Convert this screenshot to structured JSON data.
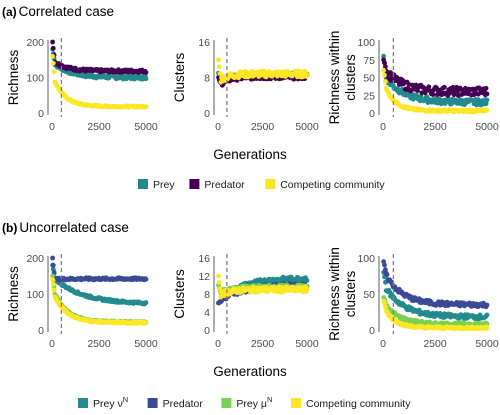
{
  "colors": {
    "prey": "#238A8D",
    "predator": "#440154",
    "competing": "#FDE725",
    "prey_nu": "#238A8D",
    "predator_b": "#3B4A96",
    "prey_mu": "#7AD151"
  },
  "shared_xlabel": "Generations",
  "chart_data": [
    {
      "type": "scatter",
      "panel_label": "(a)",
      "panel_title": "Correlated case",
      "ylabel": "Richness",
      "xlim": [
        0,
        5000
      ],
      "ylim": [
        0,
        200
      ],
      "xticks": [
        "0",
        "2500",
        "5000"
      ],
      "yticks": [
        "0",
        "100",
        "200"
      ],
      "vline_x": 500,
      "series": [
        {
          "name": "Prey",
          "color": "prey",
          "start": 145,
          "end": 100,
          "peak": 180,
          "decay": 900,
          "noise": 5
        },
        {
          "name": "Predator",
          "color": "predator",
          "start": 150,
          "end": 118,
          "peak": 200,
          "decay": 700,
          "noise": 4
        },
        {
          "name": "Competing community",
          "color": "competing",
          "start": 110,
          "end": 18,
          "peak": 160,
          "decay": 600,
          "noise": 2
        }
      ]
    },
    {
      "type": "scatter",
      "panel_label": "(a)",
      "ylabel": "Clusters",
      "xlim": [
        0,
        5000
      ],
      "ylim": [
        0,
        16
      ],
      "xticks": [
        "0",
        "2500",
        "5000"
      ],
      "yticks": [
        "0",
        "8",
        "16"
      ],
      "vline_x": 500,
      "series": [
        {
          "name": "Prey",
          "color": "prey",
          "start": 6.5,
          "end": 8.5,
          "peak": 9,
          "decay": 500,
          "noise": 0.6
        },
        {
          "name": "Predator",
          "color": "predator",
          "start": 6.0,
          "end": 8.2,
          "peak": 8,
          "decay": 500,
          "noise": 0.6
        },
        {
          "name": "Competing community",
          "color": "competing",
          "start": 7.0,
          "end": 8.8,
          "peak": 12,
          "decay": 500,
          "noise": 0.7
        }
      ]
    },
    {
      "type": "scatter",
      "panel_label": "(a)",
      "ylabel": "Richness within clusters",
      "xlim": [
        0,
        5000
      ],
      "ylim": [
        0,
        100
      ],
      "xticks": [
        "0",
        "2500",
        "5000"
      ],
      "yticks": [
        "0",
        "25",
        "50",
        "75",
        "100"
      ],
      "vline_x": 500,
      "series": [
        {
          "name": "Prey",
          "color": "prey",
          "start": 55,
          "end": 15,
          "peak": 80,
          "decay": 900,
          "noise": 4
        },
        {
          "name": "Predator",
          "color": "predator",
          "start": 65,
          "end": 30,
          "peak": 75,
          "decay": 800,
          "noise": 6
        },
        {
          "name": "Competing community",
          "color": "competing",
          "start": 45,
          "end": 3,
          "peak": 60,
          "decay": 500,
          "noise": 1.5
        }
      ]
    },
    {
      "type": "scatter",
      "panel_label": "(b)",
      "panel_title": "Uncorrelated case",
      "ylabel": "Richness",
      "xlim": [
        0,
        5000
      ],
      "ylim": [
        0,
        200
      ],
      "xticks": [
        "0",
        "2500",
        "5000"
      ],
      "yticks": [
        "0",
        "100",
        "200"
      ],
      "vline_x": 500,
      "series": [
        {
          "name": "Prey νᴺ",
          "color": "prey_nu",
          "start": 150,
          "end": 72,
          "peak": 180,
          "decay": 1500,
          "noise": 3
        },
        {
          "name": "Predator",
          "color": "predator_b",
          "start": 140,
          "end": 142,
          "peak": 200,
          "decay": 400,
          "noise": 3
        },
        {
          "name": "Prey μᴺ",
          "color": "prey_mu",
          "start": 120,
          "end": 22,
          "peak": 150,
          "decay": 700,
          "noise": 2
        },
        {
          "name": "Competing community",
          "color": "competing",
          "start": 110,
          "end": 20,
          "peak": 140,
          "decay": 700,
          "noise": 2
        }
      ]
    },
    {
      "type": "scatter",
      "panel_label": "(b)",
      "ylabel": "Clusters",
      "xlim": [
        0,
        5000
      ],
      "ylim": [
        0,
        16
      ],
      "xticks": [
        "0",
        "2500",
        "5000"
      ],
      "yticks": [
        "0",
        "4",
        "8",
        "12",
        "16"
      ],
      "vline_x": 500,
      "series": [
        {
          "name": "Prey νᴺ",
          "color": "prey_nu",
          "start": 6,
          "end": 11.5,
          "peak": 6,
          "decay": 1200,
          "noise": 0.5
        },
        {
          "name": "Predator",
          "color": "predator_b",
          "start": 6,
          "end": 10,
          "peak": 6,
          "decay": 1200,
          "noise": 0.5
        },
        {
          "name": "Prey μᴺ",
          "color": "prey_mu",
          "start": 8,
          "end": 9.5,
          "peak": 10,
          "decay": 600,
          "noise": 0.5
        },
        {
          "name": "Competing community",
          "color": "competing",
          "start": 7.5,
          "end": 9,
          "peak": 12,
          "decay": 600,
          "noise": 0.6
        }
      ]
    },
    {
      "type": "scatter",
      "panel_label": "(b)",
      "ylabel": "Richness within clusters",
      "xlim": [
        0,
        5000
      ],
      "ylim": [
        0,
        100
      ],
      "xticks": [
        "0",
        "2500",
        "5000"
      ],
      "yticks": [
        "0",
        "50",
        "100"
      ],
      "vline_x": 500,
      "series": [
        {
          "name": "Prey νᴺ",
          "color": "prey_nu",
          "start": 65,
          "end": 18,
          "peak": 80,
          "decay": 900,
          "noise": 3
        },
        {
          "name": "Predator",
          "color": "predator_b",
          "start": 85,
          "end": 35,
          "peak": 95,
          "decay": 800,
          "noise": 3
        },
        {
          "name": "Prey μᴺ",
          "color": "prey_mu",
          "start": 40,
          "end": 8,
          "peak": 45,
          "decay": 700,
          "noise": 2
        },
        {
          "name": "Competing community",
          "color": "competing",
          "start": 35,
          "end": 3,
          "peak": 40,
          "decay": 500,
          "noise": 1.5
        }
      ]
    }
  ],
  "legend_a": [
    {
      "label": "Prey",
      "color": "prey"
    },
    {
      "label": "Predator",
      "color": "predator"
    },
    {
      "label": "Competing community",
      "color": "competing"
    }
  ],
  "legend_b": [
    {
      "label": "Prey ν",
      "sup": "N",
      "color": "prey_nu"
    },
    {
      "label": "Predator",
      "color": "predator_b"
    },
    {
      "label": "Prey μ",
      "sup": "N",
      "color": "prey_mu"
    },
    {
      "label": "Competing community",
      "color": "competing"
    }
  ]
}
